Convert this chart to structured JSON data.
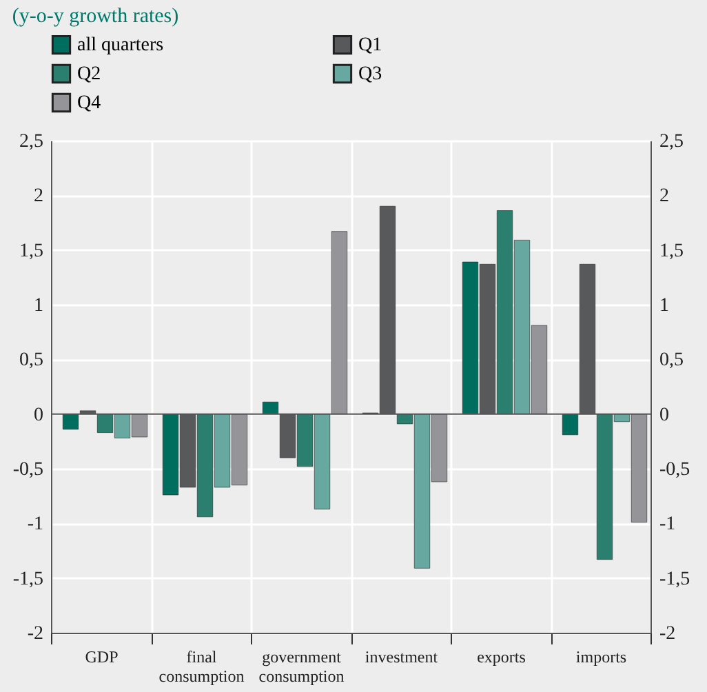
{
  "chart_data": {
    "type": "bar",
    "title": "(y-o-y growth rates)",
    "categories": [
      "GDP",
      "final consumption",
      "government consumption",
      "investment",
      "exports",
      "imports"
    ],
    "series": [
      {
        "name": "all quarters",
        "color": "#006e5f",
        "values": [
          -0.14,
          -0.74,
          0.11,
          0.01,
          1.39,
          -0.19
        ]
      },
      {
        "name": "Q1",
        "color": "#58595b",
        "values": [
          0.03,
          -0.67,
          -0.4,
          1.9,
          1.37,
          1.37
        ]
      },
      {
        "name": "Q2",
        "color": "#2a7f6f",
        "values": [
          -0.17,
          -0.94,
          -0.48,
          -0.09,
          1.86,
          -1.33
        ]
      },
      {
        "name": "Q3",
        "color": "#67a9a0",
        "values": [
          -0.22,
          -0.67,
          -0.87,
          -1.41,
          1.59,
          -0.07
        ]
      },
      {
        "name": "Q4",
        "color": "#959599",
        "values": [
          -0.21,
          -0.65,
          1.67,
          -0.62,
          0.81,
          -0.99
        ]
      }
    ],
    "ylim": [
      -2,
      2.5
    ],
    "yticks": [
      -2,
      {
        "value": -1.5,
        "label": "-1,5"
      },
      -1,
      {
        "value": -0.5,
        "label": "-0,5"
      },
      0,
      {
        "value": 0.5,
        "label": "0,5"
      },
      1,
      {
        "value": 1.5,
        "label": "1,5"
      },
      2,
      {
        "value": 2.5,
        "label": "2,5"
      }
    ],
    "y2lim": [
      -2,
      2.5
    ],
    "y2ticks": [
      -2,
      {
        "value": -1.5,
        "label": "-1,5"
      },
      -1,
      {
        "value": -0.5,
        "label": "-0,5"
      },
      0,
      {
        "value": 0.5,
        "label": "0,5"
      },
      1,
      {
        "value": 1.5,
        "label": "1,5"
      },
      2,
      {
        "value": 2.5,
        "label": "2,5"
      }
    ],
    "grid": true,
    "legend": "top left"
  }
}
